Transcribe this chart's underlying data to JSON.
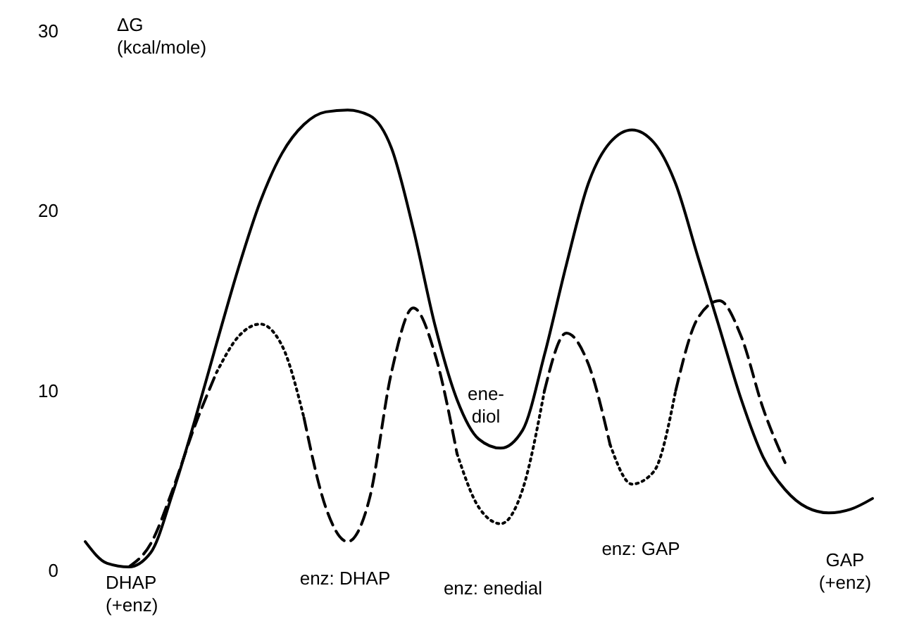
{
  "chart_data": {
    "type": "line",
    "ylabel": "ΔG\n(kcal/mole)",
    "categories": [
      null,
      null,
      null,
      null,
      null,
      null,
      null,
      null,
      null,
      null,
      null,
      null,
      null,
      null,
      null,
      null,
      null,
      null,
      null,
      null,
      null,
      null,
      null,
      null,
      null,
      null,
      null,
      null,
      null,
      null,
      null,
      null,
      null,
      null,
      null,
      null,
      null
    ],
    "series": [
      {
        "color": "#000000",
        "line_style": "solid",
        "values": [
          1.6,
          0.4,
          0.2,
          1.0,
          4.3,
          8.3,
          12.6,
          16.8,
          20.5,
          23.2,
          24.8,
          25.5,
          25.6,
          25.3,
          23.5,
          19,
          13.6,
          9.5,
          7.3,
          6.8,
          7.8,
          12,
          17,
          21.5,
          23.8,
          24.5,
          23.8,
          21.5,
          17.5,
          13.5,
          9.5,
          6.3,
          4.5,
          3.5,
          3.2,
          3.4,
          4
        ]
      },
      {
        "color": "#000000",
        "line_style": "dashed",
        "values": [
          null,
          null,
          0.2,
          1.5,
          4.5,
          8,
          11,
          null,
          null,
          null,
          8.5,
          3.5,
          1.6,
          4,
          11,
          14.6,
          12,
          6.5,
          null,
          null,
          null,
          10,
          13.2,
          11.5,
          7,
          null,
          null,
          10,
          14,
          15,
          13,
          9,
          6,
          null,
          null,
          null,
          null
        ]
      },
      {
        "color": "#000000",
        "line_style": "dotted",
        "values": [
          null,
          null,
          null,
          null,
          null,
          null,
          11,
          13,
          13.7,
          12.5,
          8.5,
          null,
          null,
          null,
          null,
          null,
          null,
          6.5,
          3.5,
          2.6,
          4.5,
          10,
          null,
          null,
          7,
          4.8,
          5.5,
          10,
          null,
          null,
          null,
          null,
          null,
          null,
          null,
          null,
          null
        ]
      }
    ],
    "ylim": [
      0,
      30
    ],
    "yticks": [
      0,
      10,
      20,
      30
    ],
    "grid": false,
    "tick_labels": "y",
    "annotations": [
      "DHAP\n(+enz)",
      "enz: DHAP",
      "ene-\ndiol",
      "enz: enedial",
      "enz: GAP",
      "GAP\n(+enz)"
    ]
  }
}
